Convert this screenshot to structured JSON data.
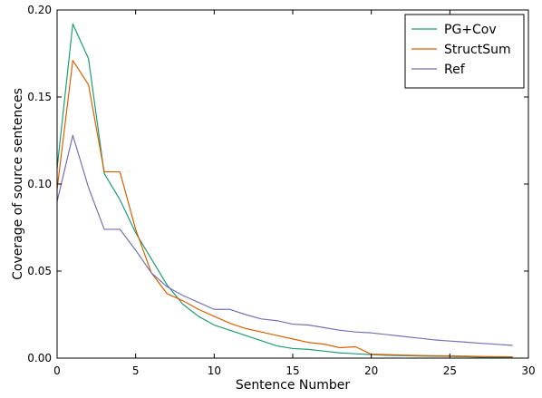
{
  "chart_data": {
    "type": "line",
    "title": "",
    "xlabel": "Sentence Number",
    "ylabel": "Coverage of source sentences",
    "xlim": [
      0,
      30
    ],
    "ylim": [
      0,
      0.2
    ],
    "x_ticks": [
      0,
      5,
      10,
      15,
      20,
      25,
      30
    ],
    "x_tick_labels": [
      "0",
      "5",
      "10",
      "15",
      "20",
      "25",
      "30"
    ],
    "y_ticks": [
      0,
      0.05,
      0.1,
      0.15,
      0.2
    ],
    "y_tick_labels": [
      "0.00",
      "0.05",
      "0.10",
      "0.15",
      "0.20"
    ],
    "grid": false,
    "legend_position": "top-right",
    "x": [
      0,
      1,
      2,
      3,
      4,
      5,
      6,
      7,
      8,
      9,
      10,
      11,
      12,
      13,
      14,
      15,
      16,
      17,
      18,
      19,
      20,
      21,
      22,
      23,
      24,
      25,
      26,
      27,
      28,
      29
    ],
    "series": [
      {
        "name": "PG+Cov",
        "color": "#1b9e77",
        "values": [
          0.109,
          0.192,
          0.172,
          0.106,
          0.091,
          0.072,
          0.057,
          0.042,
          0.031,
          0.024,
          0.019,
          0.016,
          0.013,
          0.01,
          0.007,
          0.0055,
          0.005,
          0.004,
          0.003,
          0.0025,
          0.002,
          0.0016,
          0.0014,
          0.0012,
          0.0011,
          0.001,
          0.0008,
          0.0006,
          0.0005,
          0.0004
        ]
      },
      {
        "name": "StructSum",
        "color": "#d95f02",
        "values": [
          0.097,
          0.171,
          0.157,
          0.107,
          0.107,
          0.074,
          0.049,
          0.037,
          0.033,
          0.028,
          0.024,
          0.02,
          0.017,
          0.015,
          0.013,
          0.011,
          0.009,
          0.008,
          0.006,
          0.0065,
          0.0022,
          0.002,
          0.0017,
          0.0015,
          0.0014,
          0.0013,
          0.0011,
          0.0009,
          0.0008,
          0.0007
        ]
      },
      {
        "name": "Ref",
        "color": "#7570b3",
        "values": [
          0.09,
          0.128,
          0.098,
          0.074,
          0.074,
          0.062,
          0.049,
          0.041,
          0.036,
          0.032,
          0.028,
          0.028,
          0.025,
          0.0225,
          0.0215,
          0.0195,
          0.019,
          0.0175,
          0.016,
          0.015,
          0.0145,
          0.0135,
          0.0125,
          0.0115,
          0.0105,
          0.0098,
          0.0092,
          0.0085,
          0.0079,
          0.0073
        ]
      }
    ]
  }
}
